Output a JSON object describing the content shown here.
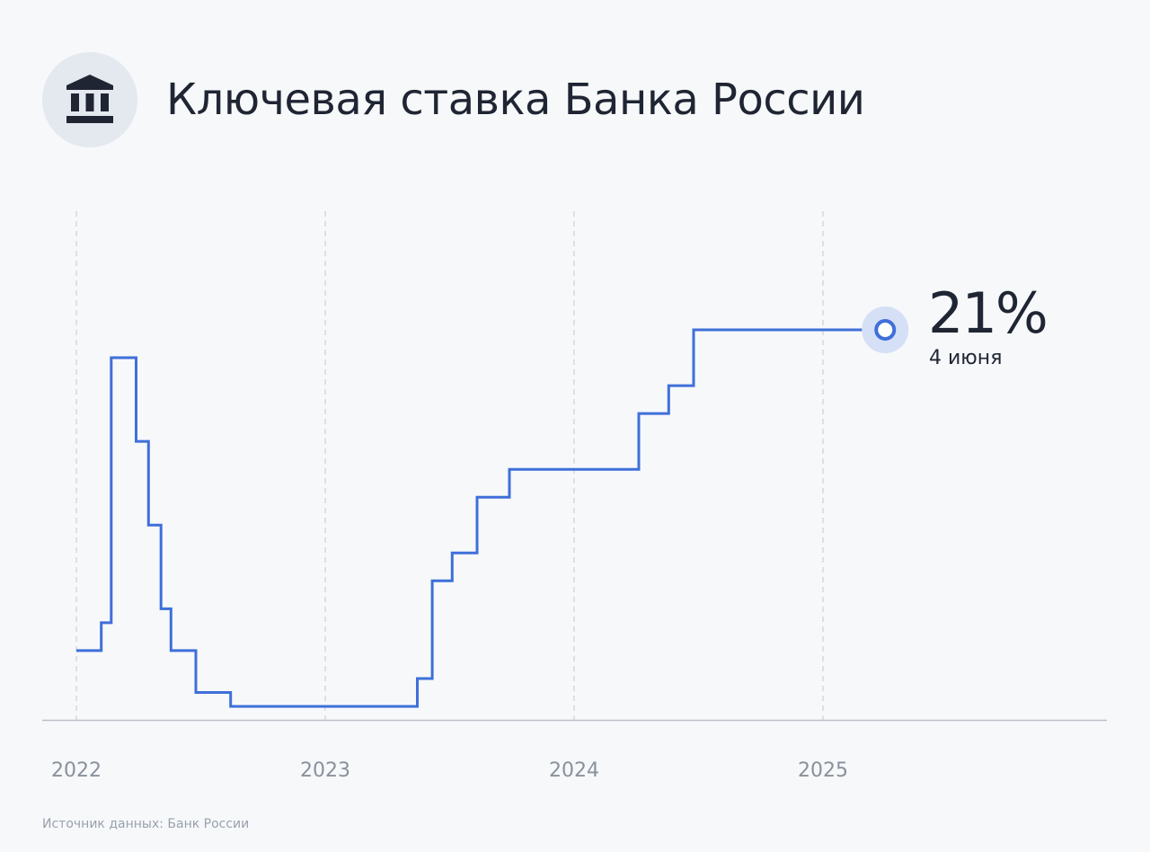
{
  "header": {
    "title": "Ключевая ставка Банка России",
    "icon": "bank-building-icon"
  },
  "footer": {
    "source": "Источник данных: Банк России"
  },
  "colors": {
    "line": "#3f6fd9",
    "text": "#1f2533",
    "muted": "#8a919c",
    "grid": "#c5c9d1",
    "marker_halo": "#d5e0f7"
  },
  "chart_data": {
    "type": "line",
    "title": "Ключевая ставка Банка России",
    "x_tick_labels": [
      "2022",
      "2023",
      "2024",
      "2025"
    ],
    "x_ticks": [
      2022,
      2023,
      2024,
      2025
    ],
    "xlim": [
      2022,
      2026.15
    ],
    "ylim": [
      7,
      26
    ],
    "grid": "vertical dashed",
    "series": [
      {
        "step": true,
        "points": [
          [
            2022.0,
            9.5
          ],
          [
            2022.1,
            9.5
          ],
          [
            2022.1,
            10.5
          ],
          [
            2022.14,
            10.5
          ],
          [
            2022.14,
            20
          ],
          [
            2022.24,
            20
          ],
          [
            2022.24,
            17
          ],
          [
            2022.29,
            17
          ],
          [
            2022.29,
            14
          ],
          [
            2022.34,
            14
          ],
          [
            2022.34,
            11
          ],
          [
            2022.38,
            11
          ],
          [
            2022.38,
            9.5
          ],
          [
            2022.48,
            9.5
          ],
          [
            2022.48,
            8
          ],
          [
            2022.62,
            8
          ],
          [
            2022.62,
            7.5
          ],
          [
            2023.37,
            7.5
          ],
          [
            2023.37,
            8.5
          ],
          [
            2023.43,
            8.5
          ],
          [
            2023.43,
            12
          ],
          [
            2023.51,
            12
          ],
          [
            2023.51,
            13
          ],
          [
            2023.61,
            13
          ],
          [
            2023.61,
            15
          ],
          [
            2023.74,
            15
          ],
          [
            2023.74,
            16
          ],
          [
            2024.26,
            16
          ],
          [
            2024.26,
            18
          ],
          [
            2024.38,
            18
          ],
          [
            2024.38,
            19
          ],
          [
            2024.48,
            19
          ],
          [
            2024.48,
            21
          ],
          [
            2025.25,
            21
          ]
        ]
      }
    ],
    "current": {
      "x": 2025.25,
      "value": 21,
      "value_label": "21%",
      "date_label": "4 июня"
    }
  }
}
